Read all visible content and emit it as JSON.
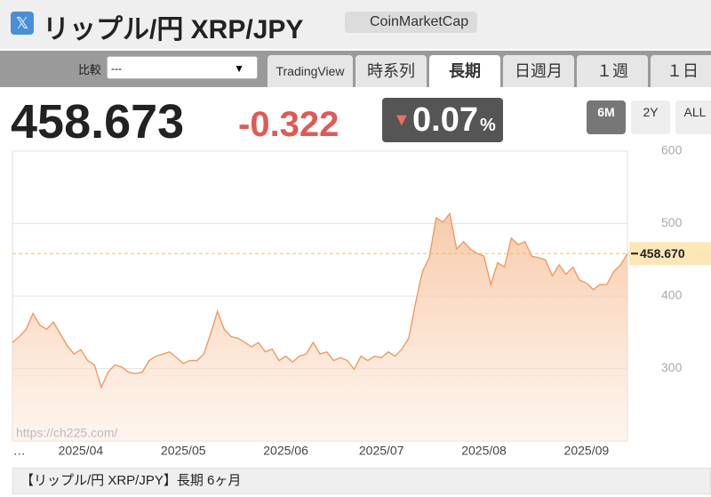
{
  "header": {
    "title": "リップル/円 XRP/JPY",
    "link": "CoinMarketCap"
  },
  "toolbar": {
    "compare_label": "比較",
    "compare_value": "---",
    "tabs": [
      "TradingView",
      "時系列",
      "長期",
      "日週月",
      "１週",
      "１日"
    ],
    "active_tab": 2
  },
  "quote": {
    "price": "458.673",
    "change": "-0.322",
    "percent": "0.07",
    "percent_unit": "%"
  },
  "ranges": [
    "6M",
    "2Y",
    "ALL"
  ],
  "active_range": 0,
  "chart_data": {
    "type": "area",
    "categories": [
      null,
      "…",
      null,
      null,
      null,
      null,
      null,
      null,
      null,
      null,
      "2025/04",
      null,
      null,
      null,
      null,
      null,
      null,
      null,
      null,
      null,
      null,
      null,
      null,
      null,
      null,
      "2025/05",
      null,
      null,
      null,
      null,
      null,
      null,
      null,
      null,
      null,
      null,
      null,
      null,
      null,
      null,
      "2025/06",
      null,
      null,
      null,
      null,
      null,
      null,
      null,
      null,
      null,
      null,
      null,
      null,
      null,
      "2025/07",
      null,
      null,
      null,
      null,
      null,
      null,
      null,
      null,
      null,
      null,
      null,
      null,
      null,
      null,
      "2025/08",
      null,
      null,
      null,
      null,
      null,
      null,
      null,
      null,
      null,
      null,
      null,
      null,
      null,
      null,
      "2025/09",
      null,
      null,
      null,
      null,
      null,
      null
    ],
    "series": [
      {
        "name": "XRP/JPY",
        "color": "#ef9a62",
        "values": [
          336,
          344,
          354,
          376,
          360,
          354,
          364,
          348,
          332,
          320,
          326,
          311,
          305,
          274,
          295,
          305,
          302,
          295,
          293,
          295,
          311,
          317,
          320,
          323,
          315,
          307,
          311,
          311,
          320,
          348,
          379,
          354,
          344,
          342,
          336,
          330,
          336,
          323,
          327,
          311,
          317,
          309,
          317,
          320,
          336,
          320,
          323,
          311,
          315,
          311,
          299,
          317,
          311,
          317,
          315,
          323,
          317,
          327,
          342,
          391,
          434,
          453,
          508,
          502,
          514,
          465,
          475,
          465,
          459,
          455,
          416,
          446,
          440,
          480,
          471,
          475,
          455,
          453,
          450,
          428,
          443,
          430,
          440,
          422,
          418,
          409,
          416,
          416,
          434,
          443,
          458.67
        ]
      }
    ],
    "ylim": [
      200,
      600
    ],
    "yticks": [
      300,
      400,
      500,
      600
    ],
    "grid": true,
    "ref_line": {
      "value": 458.67,
      "label": "458.670"
    },
    "watermark": "https://ch225.com/"
  },
  "footer": "【リップル/円 XRP/JPY】長期 6ヶ月"
}
